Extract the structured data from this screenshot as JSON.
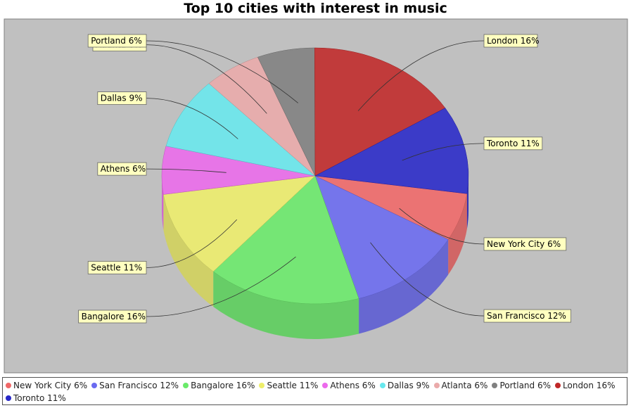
{
  "chart_data": {
    "type": "pie",
    "title": "Top 10 cities with interest in music",
    "slices": [
      {
        "name": "New York City",
        "value": 6,
        "label": "New York City 6%",
        "legend": "New York City 6%",
        "color": "#f06868"
      },
      {
        "name": "San Francisco",
        "value": 12,
        "label": "San Francisco 12%",
        "legend": "San Francisco 12%",
        "color": "#6a6af0"
      },
      {
        "name": "Bangalore",
        "value": 16,
        "label": "Bangalore 16%",
        "legend": "Bangalore 16%",
        "color": "#6aea6a"
      },
      {
        "name": "Seattle",
        "value": 11,
        "label": "Seattle 11%",
        "legend": "Seattle 11%",
        "color": "#eeee6a"
      },
      {
        "name": "Athens",
        "value": 6,
        "label": "Athens 6%",
        "legend": "Athens 6%",
        "color": "#ec6aec"
      },
      {
        "name": "Dallas",
        "value": 9,
        "label": "Dallas 9%",
        "legend": "Dallas 9%",
        "color": "#68e8ee"
      },
      {
        "name": "Atlanta",
        "value": 6,
        "label": "Atlanta 6%",
        "legend": "Atlanta 6%",
        "color": "#eaaaaa"
      },
      {
        "name": "Portland",
        "value": 6,
        "label": "Portland 6%",
        "legend": "Portland 6%",
        "color": "#808080"
      },
      {
        "name": "London",
        "value": 16,
        "label": "London 16%",
        "legend": "London 16%",
        "color": "#c02828"
      },
      {
        "name": "Toronto",
        "value": 11,
        "label": "Toronto 11%",
        "legend": "Toronto 11%",
        "color": "#2828c8"
      }
    ],
    "legend_position": "bottom",
    "background_color": "#c0c0c0",
    "label_box_color": "#ffffc0"
  }
}
